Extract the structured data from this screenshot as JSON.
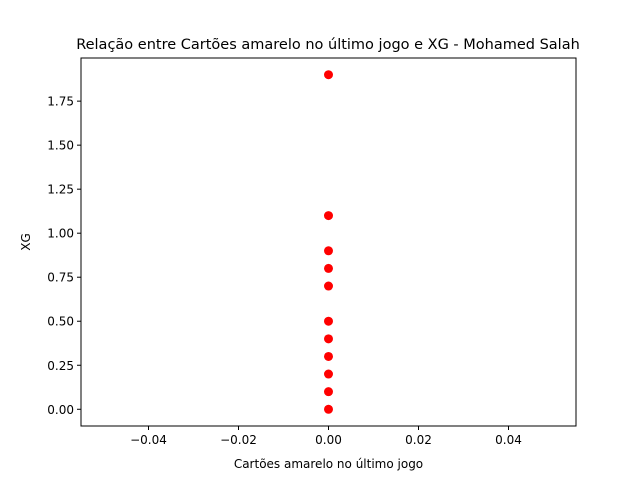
{
  "chart_data": {
    "type": "scatter",
    "title": "Relação entre Cartões amarelo no último jogo e XG - Mohamed Salah",
    "xlabel": "Cartões amarelo no último jogo",
    "ylabel": "XG",
    "xlim": [
      -0.055,
      0.055
    ],
    "ylim": [
      -0.095,
      1.995
    ],
    "xticks": [
      -0.04,
      -0.02,
      0.0,
      0.02,
      0.04
    ],
    "xtick_labels": [
      "−0.04",
      "−0.02",
      "0.00",
      "0.02",
      "0.04"
    ],
    "yticks": [
      0.0,
      0.25,
      0.5,
      0.75,
      1.0,
      1.25,
      1.5,
      1.75
    ],
    "ytick_labels": [
      "0.00",
      "0.25",
      "0.50",
      "0.75",
      "1.00",
      "1.25",
      "1.50",
      "1.75"
    ],
    "grid": false,
    "marker_color": "#ff0000",
    "points": [
      {
        "x": 0,
        "y": 1.9
      },
      {
        "x": 0,
        "y": 1.1
      },
      {
        "x": 0,
        "y": 0.9
      },
      {
        "x": 0,
        "y": 0.8
      },
      {
        "x": 0,
        "y": 0.7
      },
      {
        "x": 0,
        "y": 0.5
      },
      {
        "x": 0,
        "y": 0.4
      },
      {
        "x": 0,
        "y": 0.3
      },
      {
        "x": 0,
        "y": 0.2
      },
      {
        "x": 0,
        "y": 0.1
      },
      {
        "x": 0,
        "y": 0.0
      }
    ]
  }
}
